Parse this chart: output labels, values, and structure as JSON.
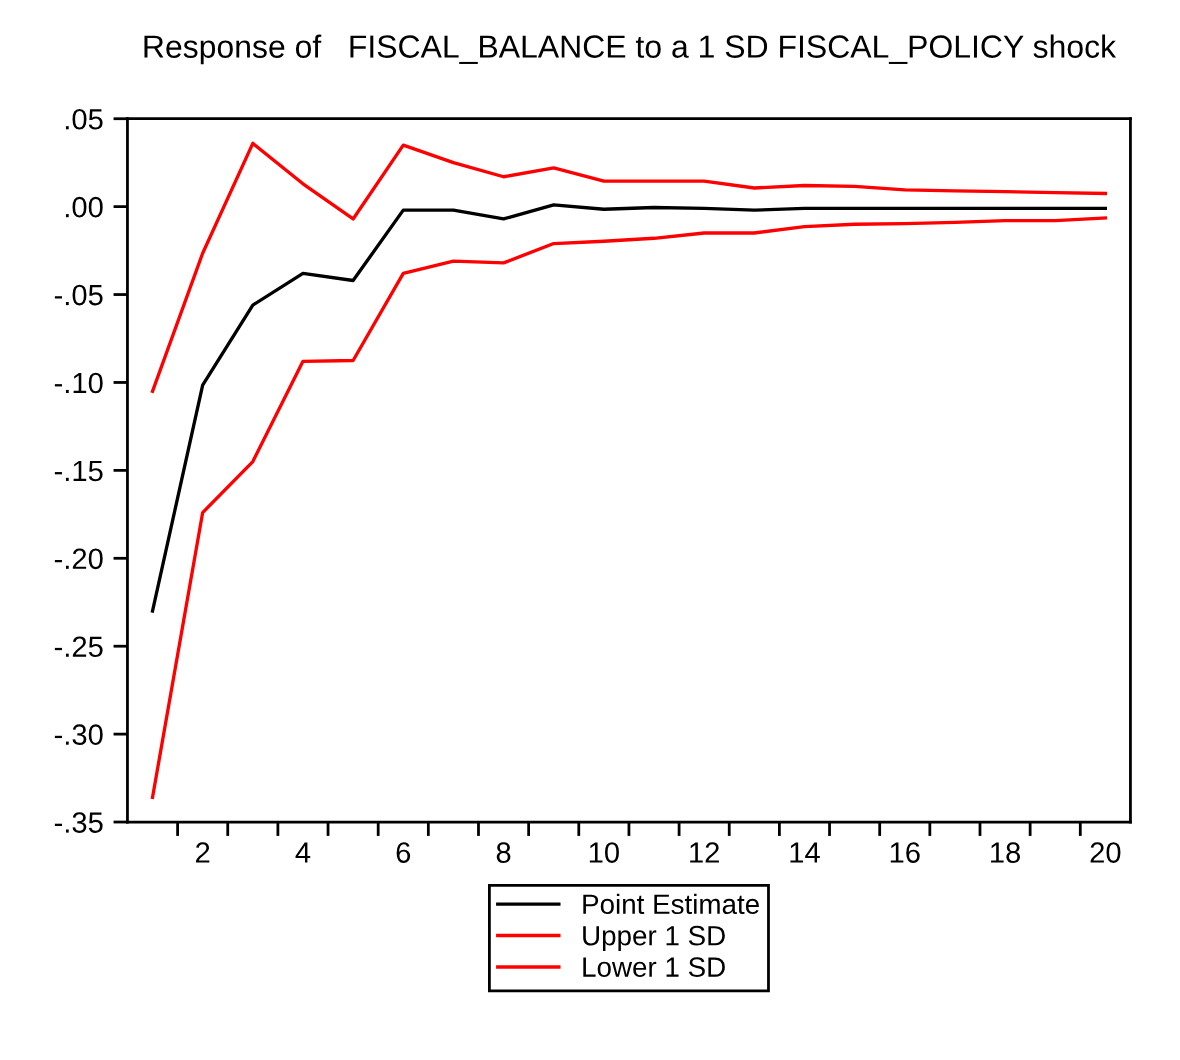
{
  "chart_data": {
    "type": "line",
    "title": "Response of   FISCAL_BALANCE to a 1 SD FISCAL_POLICY shock",
    "x": [
      1,
      2,
      3,
      4,
      5,
      6,
      7,
      8,
      9,
      10,
      11,
      12,
      13,
      14,
      15,
      16,
      17,
      18,
      19,
      20
    ],
    "series": [
      {
        "name": "Point Estimate",
        "color": "#000000",
        "values": [
          -0.23,
          -0.1015,
          -0.056,
          -0.038,
          -0.042,
          -0.002,
          -0.002,
          -0.007,
          0.001,
          -0.0015,
          -0.0005,
          -0.001,
          -0.002,
          -0.001,
          -0.001,
          -0.001,
          -0.001,
          -0.001,
          -0.001,
          -0.001
        ]
      },
      {
        "name": "Upper 1 SD",
        "color": "#ff0000",
        "values": [
          -0.105,
          -0.0265,
          0.036,
          0.013,
          -0.007,
          0.035,
          0.025,
          0.017,
          0.022,
          0.0145,
          0.0145,
          0.0145,
          0.0106,
          0.012,
          0.0115,
          0.0095,
          0.009,
          0.0085,
          0.008,
          0.0075
        ]
      },
      {
        "name": "Lower 1 SD",
        "color": "#ff0000",
        "values": [
          -0.336,
          -0.174,
          -0.145,
          -0.088,
          -0.0875,
          -0.038,
          -0.031,
          -0.032,
          -0.021,
          -0.0197,
          -0.018,
          -0.015,
          -0.015,
          -0.0114,
          -0.01,
          -0.0097,
          -0.009,
          -0.008,
          -0.008,
          -0.0064
        ]
      }
    ],
    "xlim": [
      0.5,
      20.5
    ],
    "xticks": [
      {
        "value": 2,
        "label": "2"
      },
      {
        "value": 4,
        "label": "4"
      },
      {
        "value": 6,
        "label": "6"
      },
      {
        "value": 8,
        "label": "8"
      },
      {
        "value": 10,
        "label": "10"
      },
      {
        "value": 12,
        "label": "12"
      },
      {
        "value": 14,
        "label": "14"
      },
      {
        "value": 16,
        "label": "16"
      },
      {
        "value": 18,
        "label": "18"
      },
      {
        "value": 20,
        "label": "20"
      },
      {
        "value": 1.5,
        "label": null
      },
      {
        "value": 2.5,
        "label": null
      },
      {
        "value": 3.5,
        "label": null
      },
      {
        "value": 4.5,
        "label": null
      },
      {
        "value": 5.5,
        "label": null
      },
      {
        "value": 6.5,
        "label": null
      },
      {
        "value": 7.5,
        "label": null
      },
      {
        "value": 8.5,
        "label": null
      },
      {
        "value": 9.5,
        "label": null
      },
      {
        "value": 10.5,
        "label": null
      },
      {
        "value": 11.5,
        "label": null
      },
      {
        "value": 12.5,
        "label": null
      },
      {
        "value": 13.5,
        "label": null
      },
      {
        "value": 14.5,
        "label": null
      },
      {
        "value": 15.5,
        "label": null
      },
      {
        "value": 16.5,
        "label": null
      },
      {
        "value": 17.5,
        "label": null
      },
      {
        "value": 18.5,
        "label": null
      },
      {
        "value": 19.5,
        "label": null
      }
    ],
    "ylim": [
      -0.35,
      0.05
    ],
    "yticks": [
      {
        "value": 0.05,
        "label": ".05"
      },
      {
        "value": 0,
        "label": ".00"
      },
      {
        "value": -0.05,
        "label": "-.05"
      },
      {
        "value": -0.1,
        "label": "-.10"
      },
      {
        "value": -0.15,
        "label": "-.15"
      },
      {
        "value": -0.2,
        "label": "-.20"
      },
      {
        "value": -0.25,
        "label": "-.25"
      },
      {
        "value": -0.3,
        "label": "-.30"
      },
      {
        "value": -0.35,
        "label": "-.35"
      }
    ],
    "grid": false,
    "legend": "bottom",
    "line_style": "solid",
    "marker": "none"
  }
}
